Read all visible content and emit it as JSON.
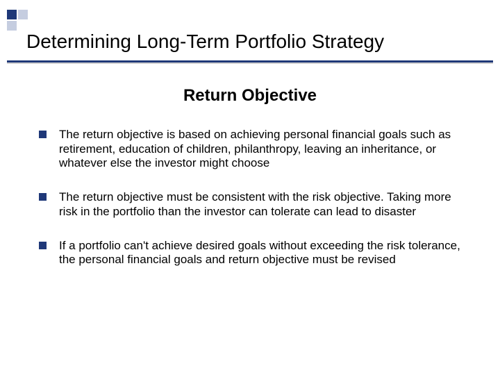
{
  "slide": {
    "title": "Determining Long-Term Portfolio Strategy",
    "subtitle": "Return Objective",
    "bullets": [
      "The return objective is based on achieving personal financial goals such as retirement, education of children, philanthropy, leaving an inheritance, or whatever else the investor might choose",
      "The return objective must be consistent with the risk objective. Taking more risk in the portfolio than the investor can tolerate can lead to disaster",
      "If a portfolio can't achieve desired goals without exceeding the risk tolerance, the personal financial goals and return objective must be revised"
    ]
  },
  "style": {
    "accent_color": "#1f3878",
    "background_color": "#ffffff",
    "title_fontsize": 28,
    "subtitle_fontsize": 24,
    "body_fontsize": 17,
    "bullet_marker_size": 11
  }
}
